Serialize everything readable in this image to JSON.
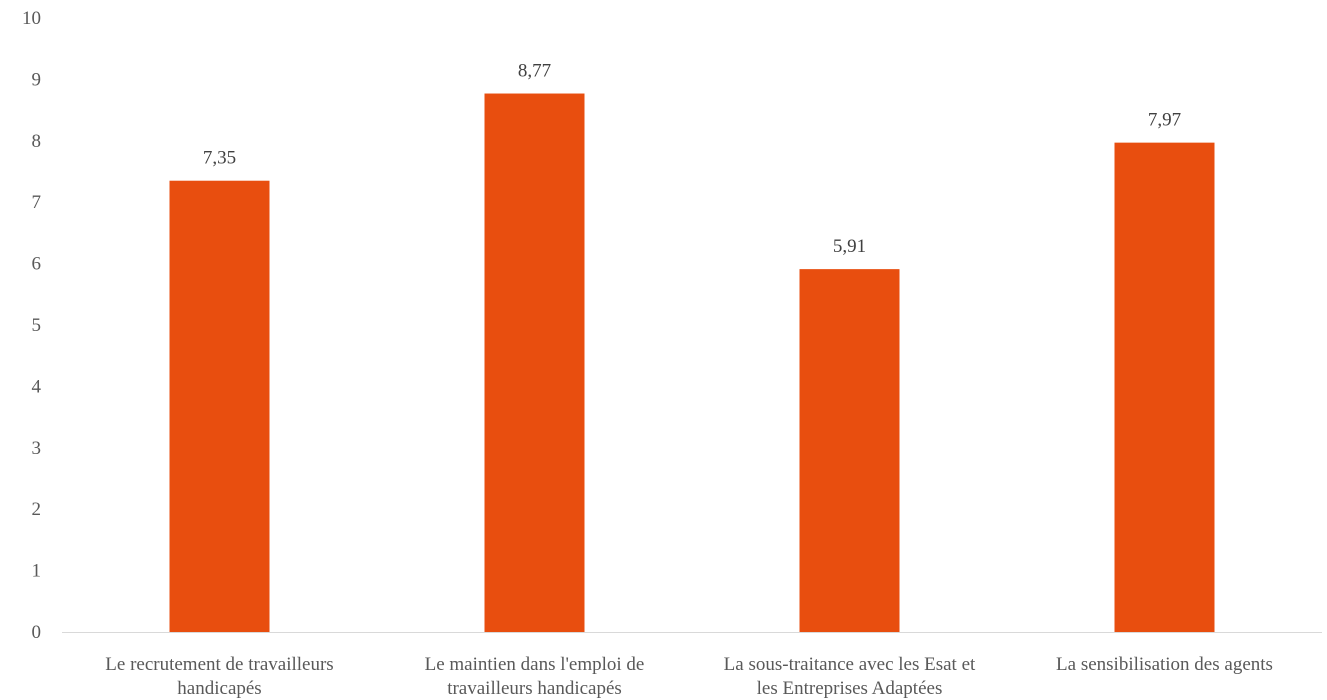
{
  "chart_data": {
    "type": "bar",
    "title": "",
    "xlabel": "",
    "ylabel": "",
    "ylim": [
      0,
      10
    ],
    "yticks": [
      "0",
      "1",
      "2",
      "3",
      "4",
      "5",
      "6",
      "7",
      "8",
      "9",
      "10"
    ],
    "categories": [
      [
        "Le recrutement de travailleurs",
        "handicapés"
      ],
      [
        "Le maintien dans l'emploi de",
        "travailleurs handicapés"
      ],
      [
        "La sous-traitance avec les Esat et",
        "les Entreprises Adaptées"
      ],
      [
        "La sensibilisation des agents"
      ]
    ],
    "values": [
      7.35,
      8.77,
      5.91,
      7.97
    ],
    "data_labels": [
      "7,35",
      "8,77",
      "5,91",
      "7,97"
    ],
    "grid": false,
    "legend": "none",
    "bar_color": "#E84E0F",
    "axis_color": "#D9D9D9"
  }
}
